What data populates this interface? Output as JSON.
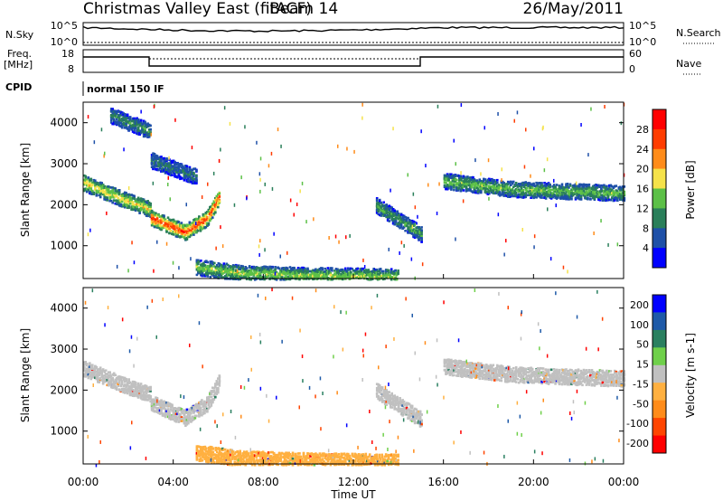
{
  "header": {
    "station": "Christmas Valley East (fitACF)",
    "beam": "Beam 14",
    "date": "26/May/2011"
  },
  "panels": {
    "nsky": {
      "label": "N.Sky",
      "ticks": [
        "10^5",
        "10^0"
      ],
      "right_ticks": [
        "10^5",
        "10^0"
      ],
      "right_label": "N.Search"
    },
    "freq": {
      "label_line1": "Freq.",
      "label_line2": "[MHz]",
      "ticks": [
        "18",
        "8"
      ],
      "right_ticks": [
        "60",
        "0"
      ],
      "right_label": "Nave"
    },
    "cpid": {
      "label": "CPID",
      "value": "normal 150 IF"
    }
  },
  "time_axis": {
    "label": "Time UT",
    "ticks": [
      "00:00",
      "04:00",
      "08:00",
      "12:00",
      "16:00",
      "20:00",
      "00:00"
    ]
  },
  "chart_data": [
    {
      "type": "heatmap",
      "ylabel": "Slant Range [km]",
      "xlabel": "Time UT",
      "xlim_hours": [
        0,
        24
      ],
      "ylim": [
        200,
        4500
      ],
      "yticks": [
        "1000",
        "2000",
        "3000",
        "4000"
      ],
      "colorbar": {
        "label": "Power [dB]",
        "ticks": [
          "4",
          "8",
          "12",
          "16",
          "20",
          "24",
          "28"
        ],
        "range": [
          0,
          30
        ],
        "colors": [
          "#0000ff",
          "#1e50a8",
          "#2a7f5a",
          "#5cc047",
          "#f5e24a",
          "#ff8c1a",
          "#ff3c00",
          "#ff0000"
        ]
      },
      "echo_bands": [
        {
          "t": [
            0.0,
            2.0,
            3.0
          ],
          "r": [
            2550,
            2100,
            1900
          ],
          "level": 0.6
        },
        {
          "t": [
            3.0,
            4.5,
            5.5,
            6.0
          ],
          "r": [
            1700,
            1350,
            1700,
            2200
          ],
          "level": 0.85
        },
        {
          "t": [
            5.0,
            7.0,
            10.0,
            14.0
          ],
          "r": [
            500,
            350,
            300,
            270
          ],
          "level": 0.5
        },
        {
          "t": [
            13.0,
            15.0
          ],
          "r": [
            2000,
            1300
          ],
          "level": 0.4
        },
        {
          "t": [
            16.0,
            19.0,
            24.0
          ],
          "r": [
            2600,
            2400,
            2300
          ],
          "level": 0.45
        },
        {
          "t": [
            3.0,
            5.0
          ],
          "r": [
            3100,
            2700
          ],
          "level": 0.3
        },
        {
          "t": [
            1.2,
            3.0
          ],
          "r": [
            4200,
            3800
          ],
          "level": 0.35
        }
      ]
    },
    {
      "type": "heatmap",
      "ylabel": "Slant Range [km]",
      "xlabel": "Time UT",
      "xlim_hours": [
        0,
        24
      ],
      "ylim": [
        200,
        4500
      ],
      "yticks": [
        "1000",
        "2000",
        "3000",
        "4000"
      ],
      "colorbar": {
        "label": "Velocity [m s-1]",
        "ticks": [
          "200",
          "100",
          "50",
          "15",
          "-15",
          "-50",
          "-100",
          "-200"
        ],
        "range": [
          -250,
          250
        ],
        "colors": [
          "#0000ff",
          "#1e5aa8",
          "#2a8060",
          "#6fd04a",
          "#c0c0c0",
          "#ffb040",
          "#ff8c1a",
          "#ff4500",
          "#ff0000"
        ]
      },
      "echo_bands": [
        {
          "t": [
            0.0,
            2.0,
            3.0
          ],
          "r": [
            2550,
            2100,
            1900
          ],
          "velocity": 0
        },
        {
          "t": [
            3.0,
            4.5,
            5.5,
            6.0
          ],
          "r": [
            1700,
            1350,
            1700,
            2200
          ],
          "velocity": 0
        },
        {
          "t": [
            5.0,
            7.0,
            10.0,
            14.0
          ],
          "r": [
            500,
            350,
            300,
            270
          ],
          "velocity": -60
        },
        {
          "t": [
            13.0,
            15.0
          ],
          "r": [
            2000,
            1300
          ],
          "velocity": 0
        },
        {
          "t": [
            16.0,
            19.0,
            24.0
          ],
          "r": [
            2600,
            2400,
            2300
          ],
          "velocity": 0
        }
      ]
    }
  ]
}
